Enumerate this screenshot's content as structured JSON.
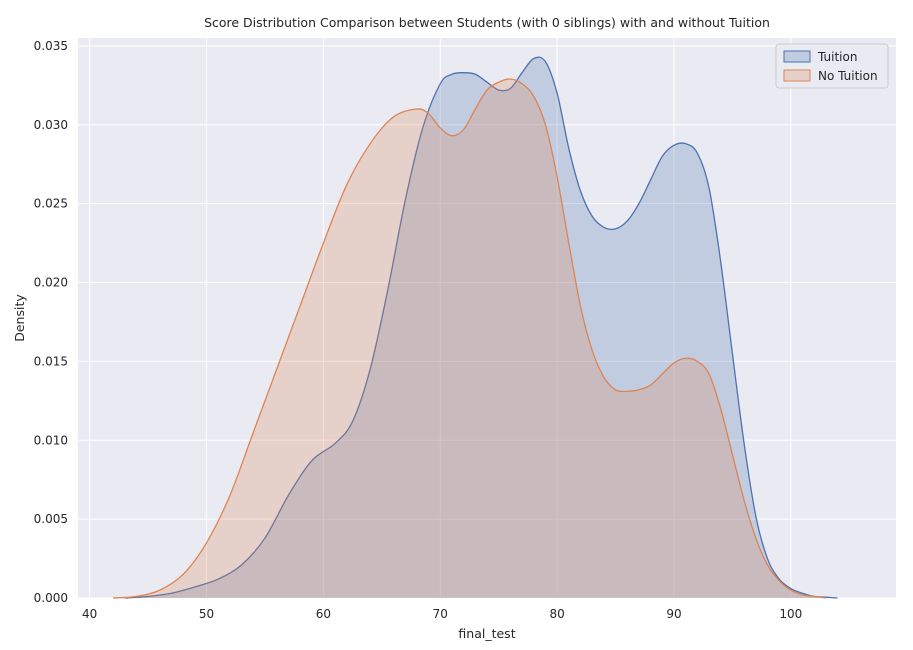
{
  "chart_data": {
    "type": "area",
    "title": "Score Distribution Comparison between Students (with 0 siblings) with and without Tuition",
    "xlabel": "final_test",
    "ylabel": "Density",
    "xlim": [
      39,
      109
    ],
    "ylim": [
      0,
      0.0355
    ],
    "xticks": [
      40,
      50,
      60,
      70,
      80,
      90,
      100
    ],
    "xtick_labels": [
      "40",
      "50",
      "60",
      "70",
      "80",
      "90",
      "100"
    ],
    "yticks": [
      0.0,
      0.005,
      0.01,
      0.015,
      0.02,
      0.025,
      0.03,
      0.035
    ],
    "ytick_labels": [
      "0.000",
      "0.005",
      "0.010",
      "0.015",
      "0.020",
      "0.025",
      "0.030",
      "0.035"
    ],
    "grid": true,
    "legend_position": "top-right",
    "series": [
      {
        "name": "Tuition",
        "color": "#4c72b0",
        "x": [
          43,
          45,
          47,
          49,
          51,
          53,
          55,
          57,
          59,
          61,
          62.5,
          64,
          65.5,
          67,
          68.5,
          70,
          71,
          72,
          73,
          74,
          75,
          76,
          77,
          78,
          79,
          80,
          81,
          82,
          83,
          84,
          85,
          86,
          87,
          88,
          89,
          90,
          91,
          92,
          93,
          94,
          95,
          96,
          97,
          98,
          99,
          100,
          101,
          102,
          103,
          104
        ],
        "values": [
          0.0,
          0.0001,
          0.0003,
          0.0007,
          0.0012,
          0.0021,
          0.0038,
          0.0065,
          0.0087,
          0.0098,
          0.0112,
          0.0145,
          0.0195,
          0.0252,
          0.0298,
          0.0326,
          0.0332,
          0.0333,
          0.0332,
          0.0327,
          0.0322,
          0.0323,
          0.0333,
          0.0342,
          0.034,
          0.032,
          0.0285,
          0.0258,
          0.0242,
          0.0235,
          0.0234,
          0.0239,
          0.025,
          0.0265,
          0.028,
          0.0287,
          0.0288,
          0.0282,
          0.026,
          0.0213,
          0.0155,
          0.0098,
          0.0052,
          0.0025,
          0.0012,
          0.0006,
          0.0003,
          0.0001,
          5e-05,
          0.0
        ]
      },
      {
        "name": "No Tuition",
        "color": "#dd8452",
        "x": [
          42,
          44,
          46,
          48,
          50,
          52,
          54,
          56,
          58,
          60,
          62,
          64,
          66,
          68,
          69,
          70,
          71,
          72,
          73,
          74,
          75,
          76,
          77,
          78,
          79,
          80,
          81,
          82,
          83,
          84,
          85,
          86,
          87,
          88,
          89,
          90,
          91,
          92,
          93,
          94,
          95,
          96,
          97,
          98,
          99,
          100,
          101,
          102,
          103
        ],
        "values": [
          0.0,
          0.0001,
          0.0005,
          0.0015,
          0.0035,
          0.0065,
          0.0105,
          0.0145,
          0.0185,
          0.0225,
          0.0262,
          0.0288,
          0.0305,
          0.031,
          0.0307,
          0.0298,
          0.0293,
          0.0297,
          0.031,
          0.0322,
          0.0327,
          0.0329,
          0.0326,
          0.0318,
          0.03,
          0.0267,
          0.0225,
          0.0185,
          0.0157,
          0.014,
          0.0132,
          0.0131,
          0.0132,
          0.0135,
          0.0142,
          0.0149,
          0.0152,
          0.015,
          0.0142,
          0.012,
          0.0091,
          0.0062,
          0.0038,
          0.0021,
          0.0011,
          0.0005,
          0.0002,
          0.0001,
          0.0
        ]
      }
    ]
  },
  "colors": {
    "plot_background": "#eaeaf2",
    "grid": "#ffffff",
    "text": "#262626"
  }
}
